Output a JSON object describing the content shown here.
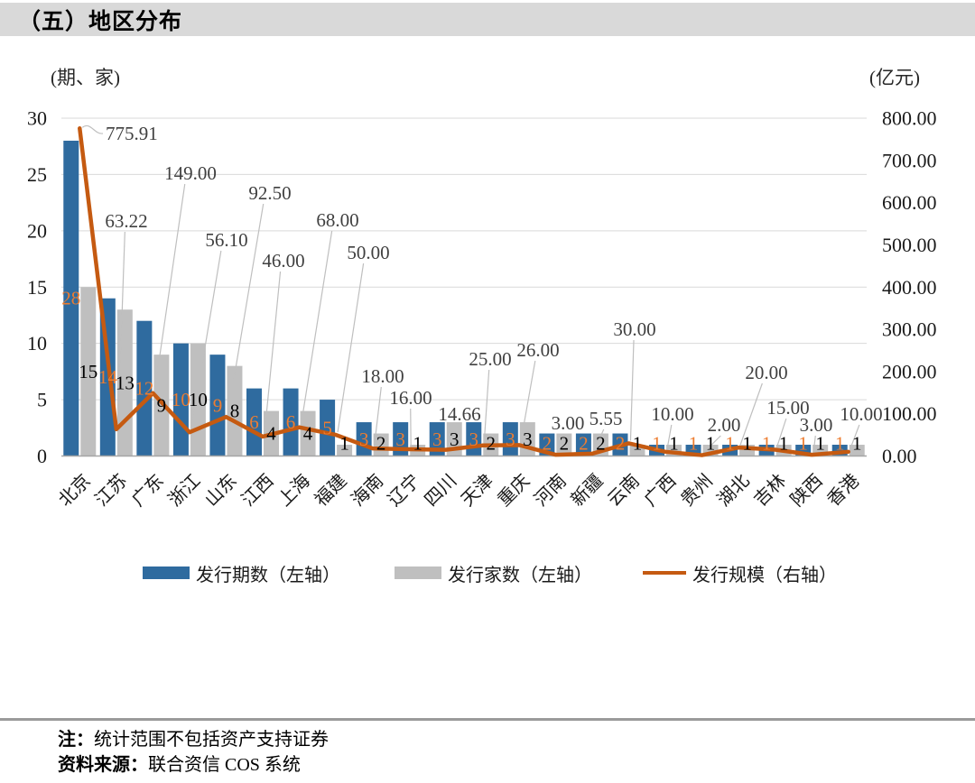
{
  "title": "（五）地区分布",
  "axes": {
    "left_unit": "(期、家)",
    "right_unit": "(亿元)",
    "left_ticks": [
      "30",
      "25",
      "20",
      "15",
      "10",
      "5",
      "0"
    ],
    "right_ticks": [
      "800.00",
      "700.00",
      "600.00",
      "500.00",
      "400.00",
      "300.00",
      "200.00",
      "100.00",
      "0.00"
    ]
  },
  "legend": {
    "items": [
      {
        "label": "发行期数（左轴）",
        "type": "bar",
        "color": "#2f6b9f"
      },
      {
        "label": "发行家数（左轴）",
        "type": "bar",
        "color": "#bfbfbf"
      },
      {
        "label": "发行规模（右轴）",
        "type": "line",
        "color": "#c55a11"
      }
    ]
  },
  "chart_data": {
    "type": "combo",
    "title": "（五）地区分布",
    "categories": [
      "北京",
      "江苏",
      "广东",
      "浙江",
      "山东",
      "江西",
      "上海",
      "福建",
      "海南",
      "辽宁",
      "四川",
      "天津",
      "重庆",
      "河南",
      "新疆",
      "云南",
      "广西",
      "贵州",
      "湖北",
      "吉林",
      "陕西",
      "香港"
    ],
    "series": [
      {
        "name": "发行期数（左轴）",
        "type": "bar",
        "axis": "left",
        "color": "#2f6b9f",
        "label_color": "#ed7d31",
        "values": [
          28,
          14,
          12,
          10,
          9,
          6,
          6,
          5,
          3,
          3,
          3,
          3,
          3,
          2,
          2,
          2,
          1,
          1,
          1,
          1,
          1,
          1
        ]
      },
      {
        "name": "发行家数（左轴）",
        "type": "bar",
        "axis": "left",
        "color": "#bfbfbf",
        "label_color": "#000000",
        "values": [
          15,
          13,
          9,
          10,
          8,
          4,
          4,
          1,
          2,
          1,
          3,
          2,
          3,
          2,
          2,
          1,
          1,
          1,
          1,
          1,
          1,
          1
        ]
      },
      {
        "name": "发行规模（右轴）",
        "type": "line",
        "axis": "right",
        "color": "#c55a11",
        "label_color": "#3f3f3f",
        "values": [
          775.91,
          63.22,
          149.0,
          56.1,
          92.5,
          46.0,
          68.0,
          50.0,
          18.0,
          16.0,
          14.66,
          25.0,
          26.0,
          3.0,
          5.55,
          30.0,
          10.0,
          2.0,
          20.0,
          15.0,
          3.0,
          10.0
        ],
        "labels": [
          "775.91",
          "63.22",
          "149.00",
          "56.10",
          "92.50",
          "46.00",
          "68.00",
          "50.00",
          "18.00",
          "16.00",
          "14.66",
          "25.00",
          "26.00",
          "3.00",
          "5.55",
          "30.00",
          "10.00",
          "2.00",
          "20.00",
          "15.00",
          "3.00",
          "10.00"
        ]
      }
    ],
    "left_axis": {
      "min": 0,
      "max": 30,
      "step": 5,
      "unit": "(期、家)"
    },
    "right_axis": {
      "min": 0,
      "max": 800,
      "step": 100,
      "unit": "(亿元)"
    },
    "grid": true,
    "legend_position": "bottom"
  },
  "notes": {
    "note_prefix": "注：",
    "note_text": "统计范围不包括资产支持证券",
    "source_prefix": "资料来源：",
    "source_text": "联合资信 COS 系统"
  }
}
